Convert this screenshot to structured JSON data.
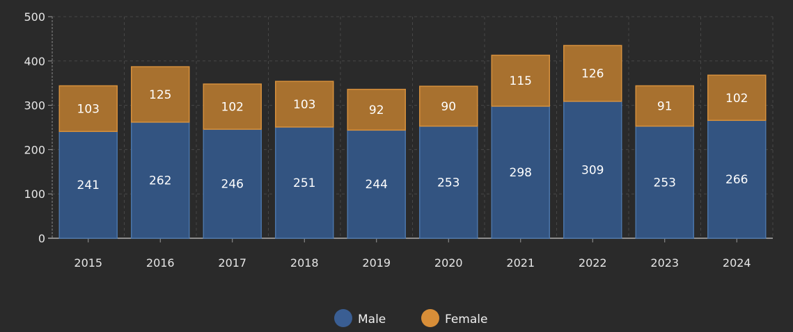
{
  "chart_data": {
    "type": "bar",
    "stacked": true,
    "categories": [
      "2015",
      "2016",
      "2017",
      "2018",
      "2019",
      "2020",
      "2021",
      "2022",
      "2023",
      "2024"
    ],
    "series": [
      {
        "name": "Male",
        "color": "#335481",
        "border": "#4a74a8",
        "values": [
          241,
          262,
          246,
          251,
          244,
          253,
          298,
          309,
          253,
          266
        ]
      },
      {
        "name": "Female",
        "color": "#a8712f",
        "border": "#d6903c",
        "values": [
          103,
          125,
          102,
          103,
          92,
          90,
          115,
          126,
          91,
          102
        ]
      }
    ],
    "legend": [
      {
        "label": "Male",
        "color": "#3a5e93"
      },
      {
        "label": "Female",
        "color": "#d88e38"
      }
    ],
    "ylim": [
      0,
      500
    ],
    "yticks": [
      "0",
      "100",
      "200",
      "300",
      "400",
      "500"
    ],
    "grid": true,
    "legend_position": "bottom-center",
    "title": "",
    "xlabel": "",
    "ylabel": ""
  }
}
